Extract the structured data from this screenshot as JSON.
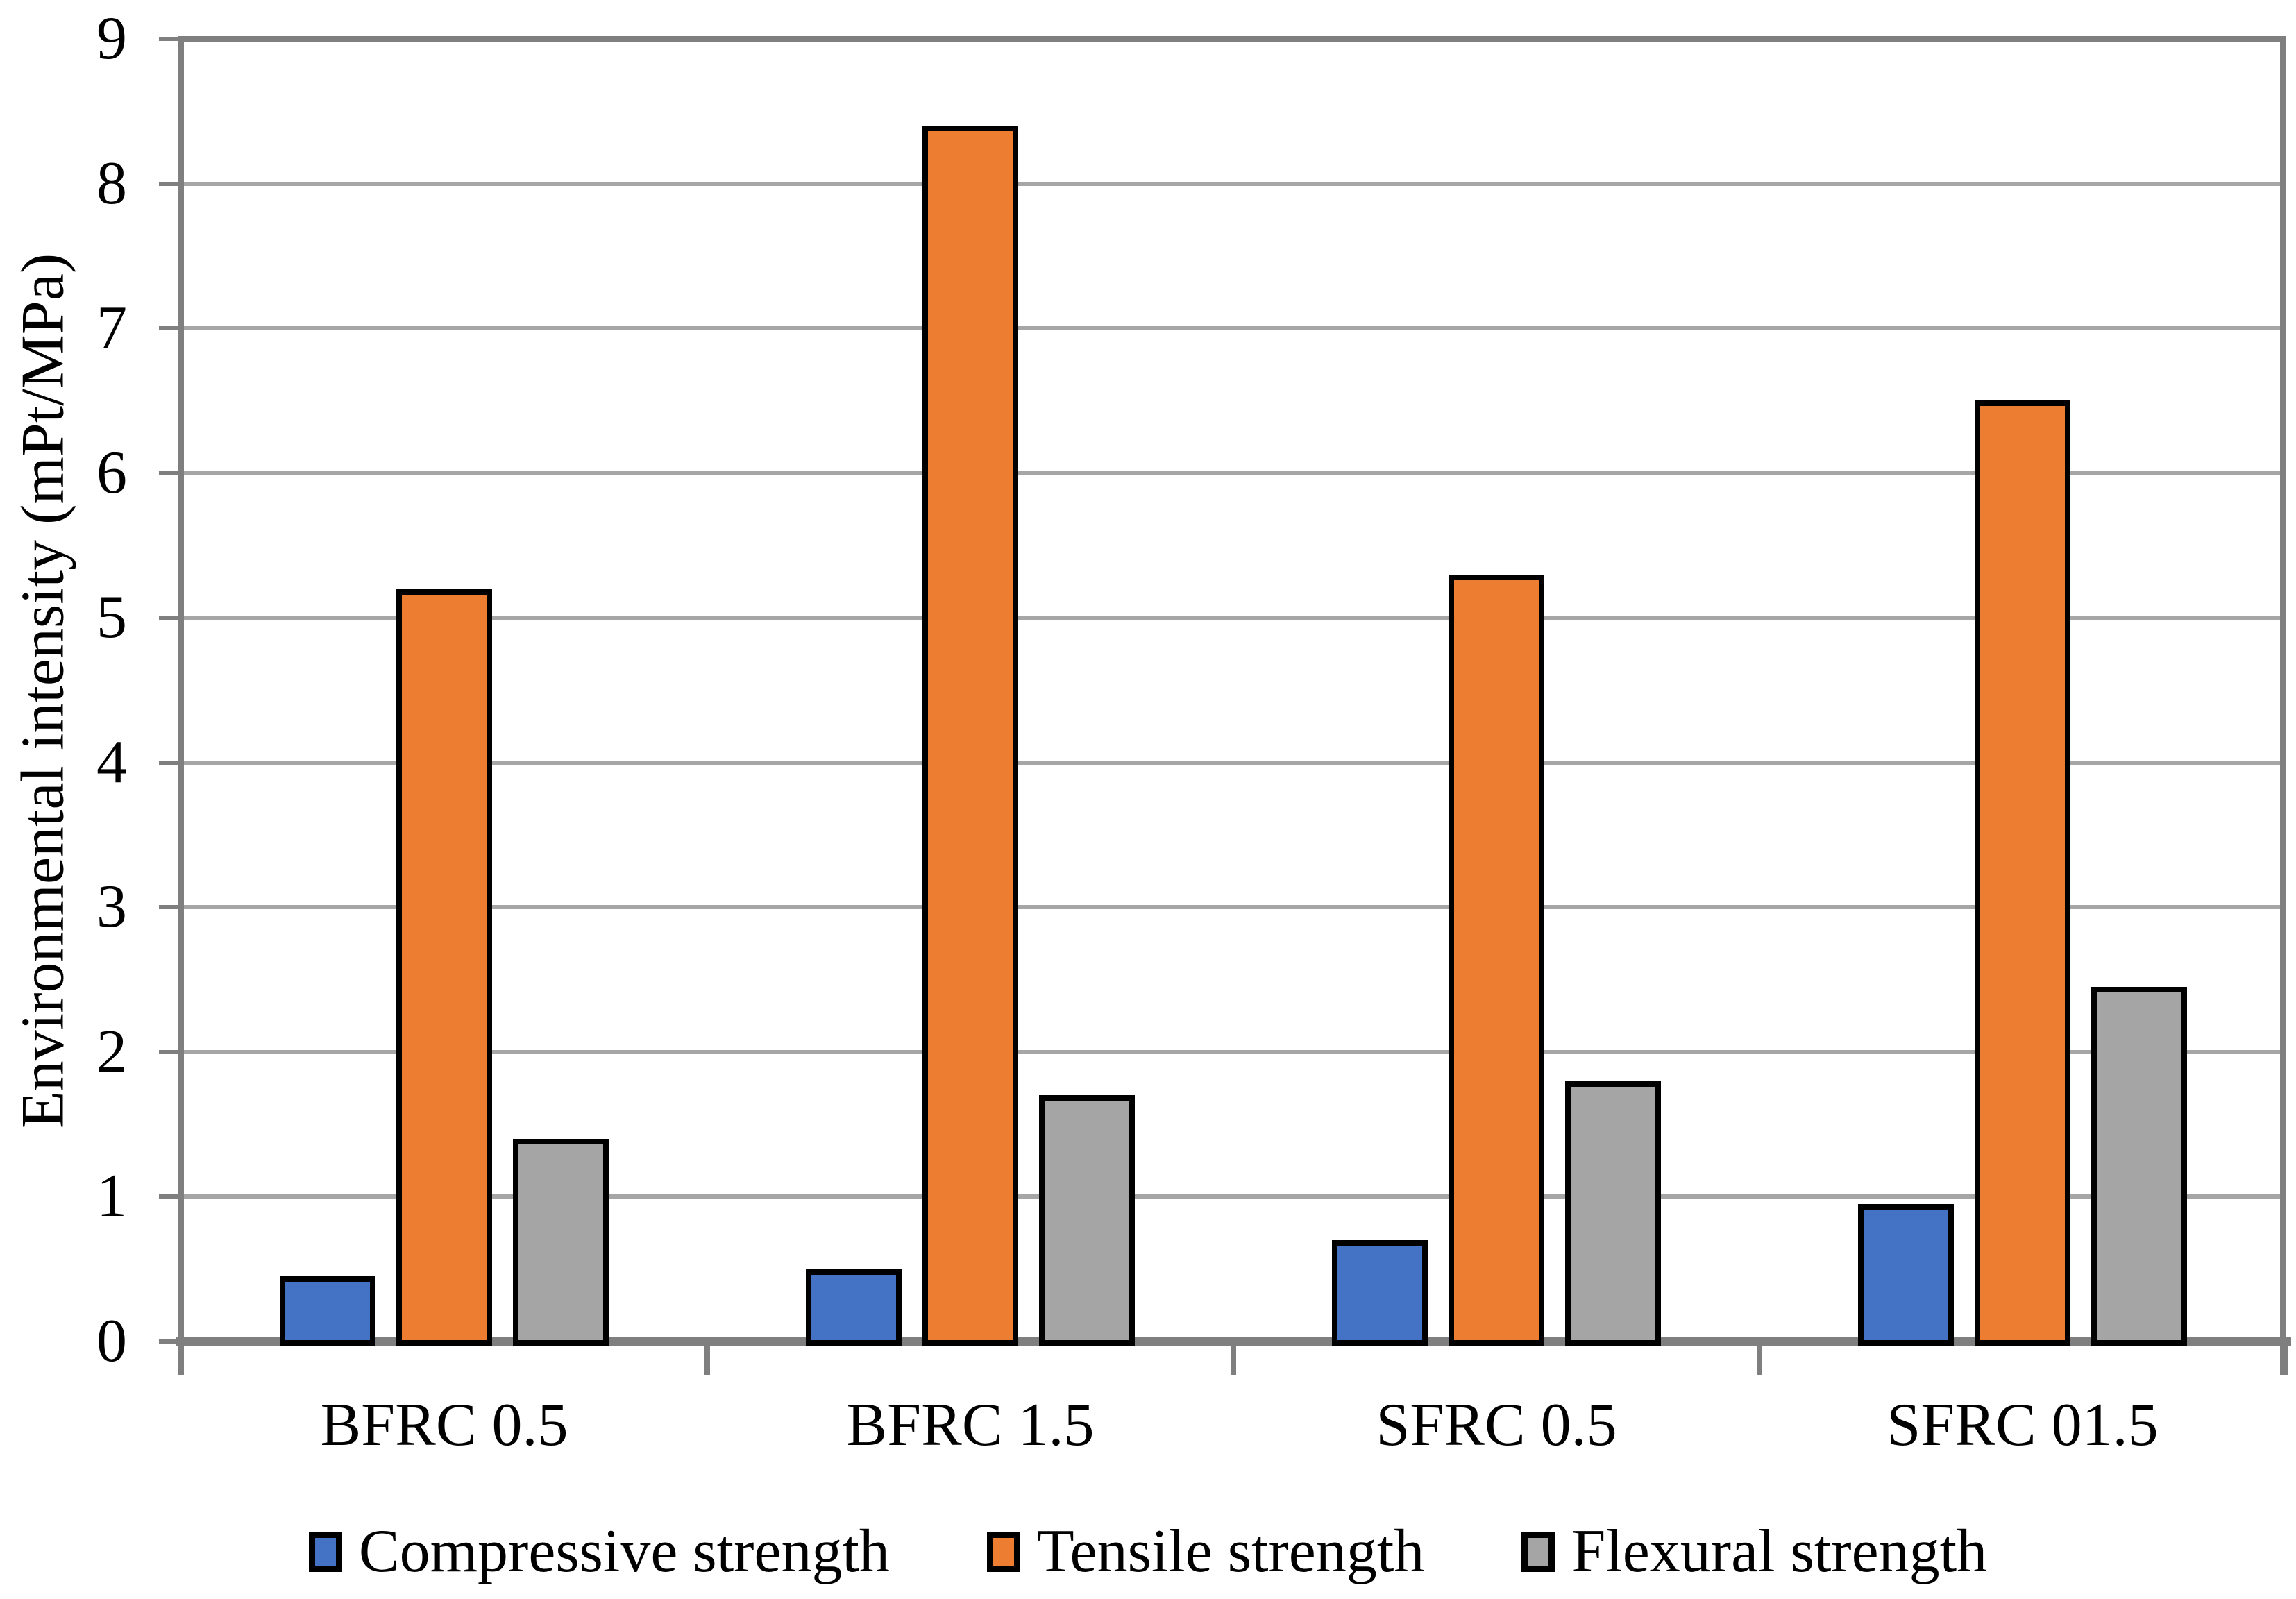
{
  "chart_data": {
    "type": "bar",
    "title": "",
    "xlabel": "",
    "ylabel": "Environmental intensity (mPt/MPa)",
    "categories": [
      "BFRC 0.5",
      "BFRC 1.5",
      "SFRC 0.5",
      "SFRC 01.5"
    ],
    "series": [
      {
        "name": "Compressive strength",
        "color": "#4472C4",
        "values": [
          0.45,
          0.5,
          0.7,
          0.95
        ]
      },
      {
        "name": "Tensile strength",
        "color": "#ED7D31",
        "values": [
          5.2,
          8.4,
          5.3,
          6.5
        ]
      },
      {
        "name": "Flexural strength",
        "color": "#A5A5A5",
        "values": [
          1.4,
          1.7,
          1.8,
          2.45
        ]
      }
    ],
    "ylim": [
      0,
      9
    ],
    "yticks": [
      "0",
      "1",
      "2",
      "3",
      "4",
      "5",
      "6",
      "7",
      "8",
      "9"
    ],
    "grid": true,
    "legend_position": "bottom",
    "bar_outline_color": "#000000",
    "axis_color": "#7F7F7F",
    "gridline_color": "#A6A6A6",
    "background_color": "#FFFFFF"
  }
}
